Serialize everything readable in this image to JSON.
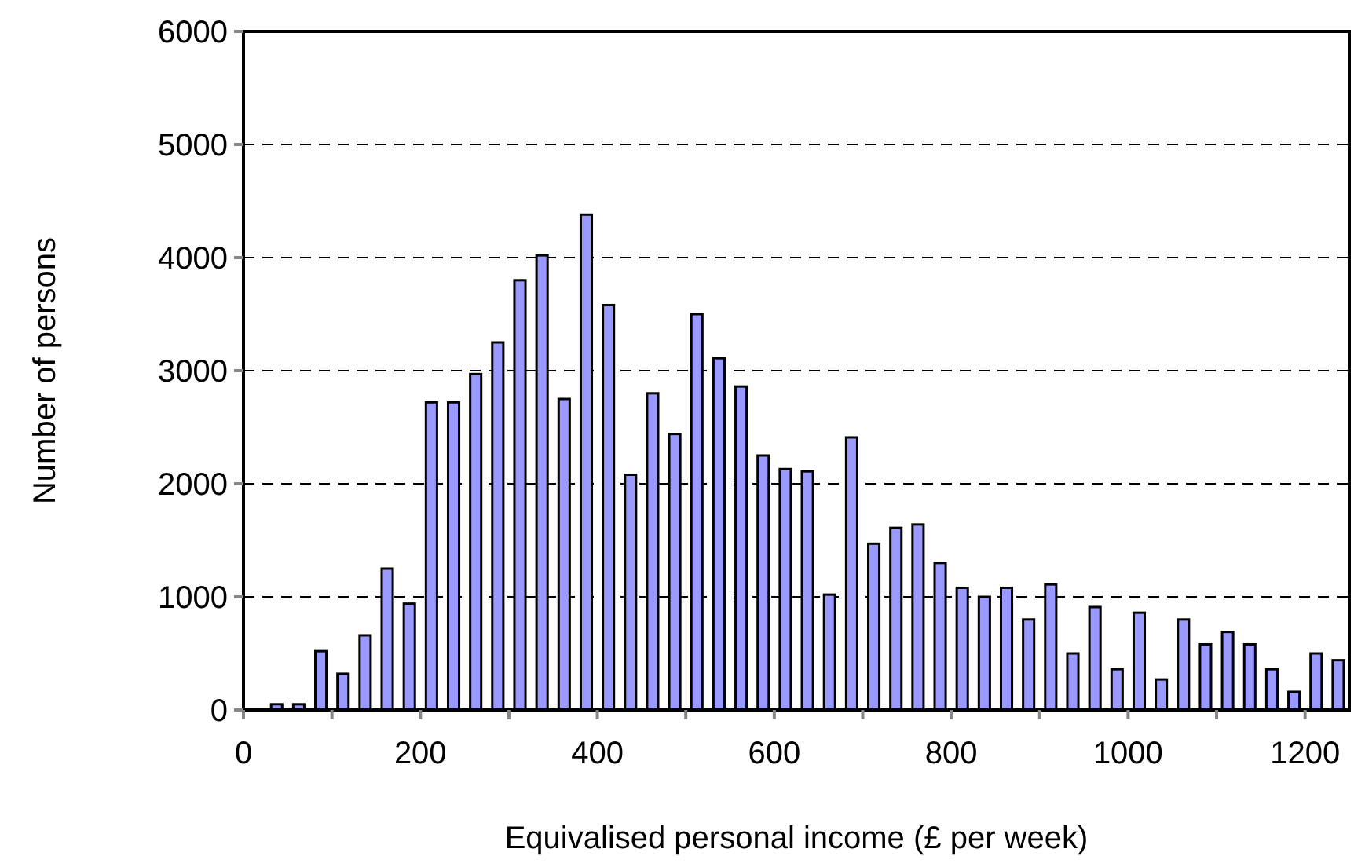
{
  "chart_data": {
    "type": "bar",
    "xlabel": "Equivalised personal income (£ per week)",
    "ylabel": "Number of persons",
    "x": [
      37.5,
      62.5,
      87.5,
      112.5,
      137.5,
      162.5,
      187.5,
      212.5,
      237.5,
      262.5,
      287.5,
      312.5,
      337.5,
      362.5,
      387.5,
      412.5,
      437.5,
      462.5,
      487.5,
      512.5,
      537.5,
      562.5,
      587.5,
      612.5,
      637.5,
      662.5,
      687.5,
      712.5,
      737.5,
      762.5,
      787.5,
      812.5,
      837.5,
      862.5,
      887.5,
      912.5,
      937.5,
      962.5,
      987.5,
      1012.5,
      1037.5,
      1062.5,
      1087.5,
      1112.5,
      1137.5,
      1162.5,
      1187.5,
      1212.5,
      1237.5
    ],
    "values": [
      50,
      50,
      520,
      320,
      660,
      1250,
      940,
      2720,
      2720,
      2970,
      3250,
      3800,
      4020,
      2750,
      4380,
      3580,
      2080,
      2800,
      2440,
      3500,
      3110,
      2860,
      2250,
      2130,
      2110,
      1020,
      2410,
      1470,
      1610,
      1640,
      1300,
      1080,
      1000,
      1080,
      800,
      1110,
      500,
      910,
      360,
      860,
      270,
      800,
      580,
      690,
      580,
      360,
      160,
      500,
      440
    ],
    "color": "#9999ff",
    "xlim": [
      0,
      1250
    ],
    "xticks": [
      0,
      {
        "value": 100,
        "label": null
      },
      200,
      {
        "value": 300,
        "label": null
      },
      400,
      {
        "value": 500,
        "label": null
      },
      600,
      {
        "value": 700,
        "label": null
      },
      800,
      {
        "value": 900,
        "label": null
      },
      1000,
      {
        "value": 1100,
        "label": null
      },
      1200
    ],
    "ylim": [
      0,
      6000
    ],
    "yticks": [
      0,
      1000,
      2000,
      3000,
      4000,
      5000,
      6000
    ],
    "grid": "y"
  }
}
